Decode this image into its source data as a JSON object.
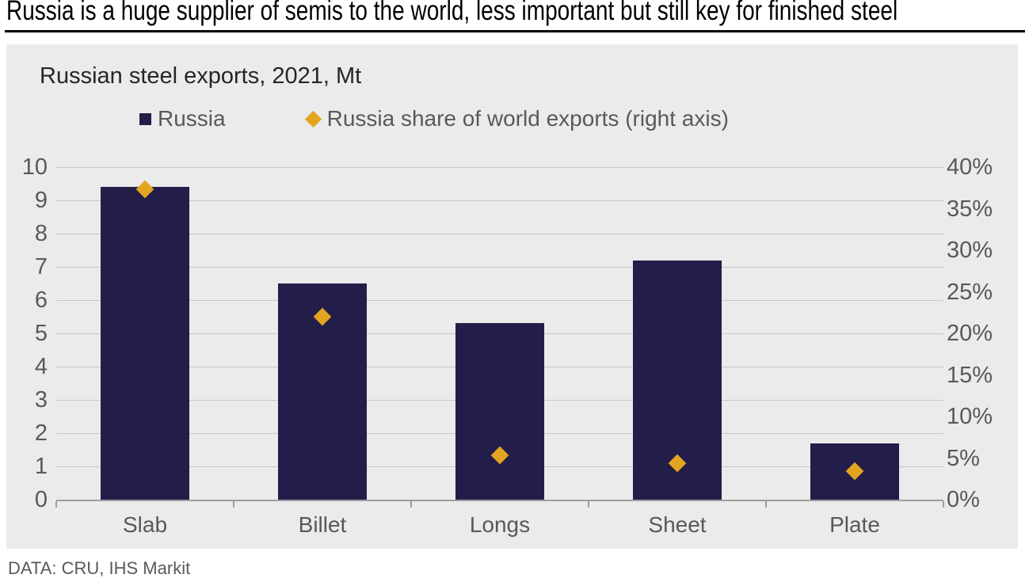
{
  "header": {
    "title": "Russia is a huge supplier of semis to the world, less important but still key for finished steel"
  },
  "footer": {
    "source": "DATA: CRU, IHS Markit"
  },
  "colors": {
    "bar": "#231d49",
    "diamond": "#e3a51f",
    "panel_background": "#ebebeb",
    "gridline": "#c6c6c6",
    "axis_text": "#595959"
  },
  "chart_data": {
    "type": "bar",
    "title": "Russian steel exports, 2021, Mt",
    "categories": [
      "Slab",
      "Billet",
      "Longs",
      "Sheet",
      "Plate"
    ],
    "series": [
      {
        "name": "Russia",
        "type": "bar",
        "axis": "left",
        "values": [
          9.4,
          6.5,
          5.3,
          7.2,
          1.7
        ],
        "color": "#231d49"
      },
      {
        "name": "Russia share of world exports (right axis)",
        "type": "scatter",
        "marker": "diamond",
        "axis": "right",
        "values": [
          37.3,
          22,
          5.3,
          4.4,
          3.4
        ],
        "color": "#e3a51f"
      }
    ],
    "left_axis": {
      "min": 0,
      "max": 10,
      "step": 1,
      "ticks": [
        0,
        1,
        2,
        3,
        4,
        5,
        6,
        7,
        8,
        9,
        10
      ]
    },
    "right_axis": {
      "min": 0,
      "max": 40,
      "step": 5,
      "suffix": "%",
      "ticks": [
        0,
        5,
        10,
        15,
        20,
        25,
        30,
        35,
        40
      ]
    },
    "grid": true,
    "legend_position": "top"
  }
}
